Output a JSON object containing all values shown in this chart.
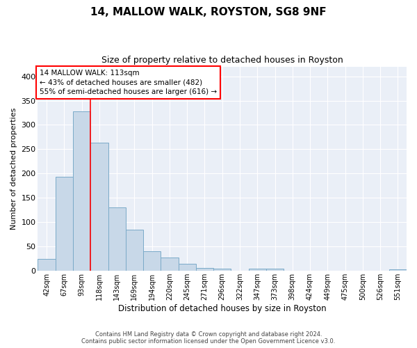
{
  "title1": "14, MALLOW WALK, ROYSTON, SG8 9NF",
  "title2": "Size of property relative to detached houses in Royston",
  "xlabel": "Distribution of detached houses by size in Royston",
  "ylabel": "Number of detached properties",
  "categories": [
    "42sqm",
    "67sqm",
    "93sqm",
    "118sqm",
    "143sqm",
    "169sqm",
    "194sqm",
    "220sqm",
    "245sqm",
    "271sqm",
    "296sqm",
    "322sqm",
    "347sqm",
    "373sqm",
    "398sqm",
    "424sqm",
    "449sqm",
    "475sqm",
    "500sqm",
    "526sqm",
    "551sqm"
  ],
  "values": [
    25,
    193,
    328,
    264,
    130,
    85,
    40,
    27,
    15,
    6,
    4,
    0,
    4,
    4,
    0,
    0,
    0,
    0,
    0,
    0,
    3
  ],
  "bar_color": "#c8d8e8",
  "bar_edge_color": "#7aaac8",
  "red_line_x": 2.5,
  "annotation_text": "14 MALLOW WALK: 113sqm\n← 43% of detached houses are smaller (482)\n55% of semi-detached houses are larger (616) →",
  "annotation_box_color": "white",
  "annotation_box_edge": "red",
  "footer1": "Contains HM Land Registry data © Crown copyright and database right 2024.",
  "footer2": "Contains public sector information licensed under the Open Government Licence v3.0.",
  "ylim": [
    0,
    420
  ],
  "yticks": [
    0,
    50,
    100,
    150,
    200,
    250,
    300,
    350,
    400
  ],
  "bg_color": "#eaeff7",
  "plot_bg_color": "#eaeff7"
}
